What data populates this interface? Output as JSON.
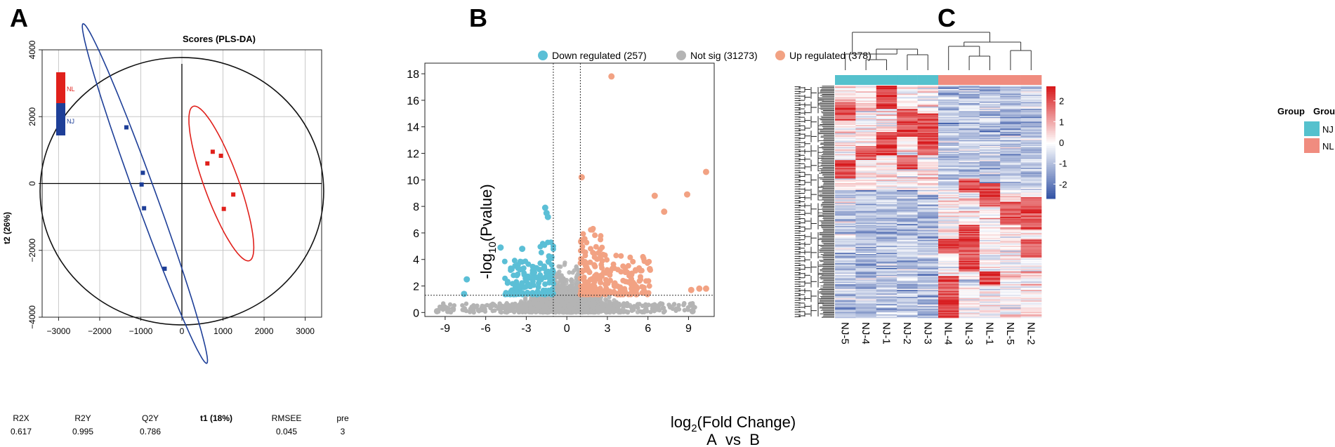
{
  "panel_letters": {
    "a": "A",
    "b": "B",
    "c": "C"
  },
  "chart_data": [
    {
      "id": "pls-da",
      "type": "scatter",
      "title": "Scores (PLS-DA)",
      "xlabel": "t1 (18%)",
      "ylabel": "t2 (26%)",
      "xlim": [
        -3400,
        3400
      ],
      "ylim": [
        -4000,
        4000
      ],
      "xticks": [
        -3000,
        -2000,
        -1000,
        0,
        1000,
        2000,
        3000
      ],
      "yticks": [
        -4000,
        -2000,
        0,
        2000,
        4000
      ],
      "xtick_labels": [
        "−3000",
        "−2000",
        "−1000",
        "0",
        "1000",
        "2000",
        "3000"
      ],
      "ytick_labels": [
        "−4000",
        "−2000",
        "0",
        "2000",
        "4000"
      ],
      "grid": true,
      "legend": [
        {
          "name": "NL",
          "color": "#e0201b"
        },
        {
          "name": "NJ",
          "color": "#1e3f98"
        }
      ],
      "series": [
        {
          "name": "NJ",
          "color": "#1e3f98",
          "points": [
            [
              -1350,
              1680
            ],
            [
              -950,
              320
            ],
            [
              -980,
              -30
            ],
            [
              -920,
              -740
            ],
            [
              -420,
              -2550
            ]
          ]
        },
        {
          "name": "NL",
          "color": "#e0201b",
          "points": [
            [
              750,
              950
            ],
            [
              950,
              830
            ],
            [
              620,
              600
            ],
            [
              1250,
              -330
            ],
            [
              1020,
              -760
            ]
          ]
        }
      ],
      "confidence_ellipse": {
        "center": [
          0,
          -230
        ],
        "radii": [
          3450,
          4000
        ]
      },
      "group_ellipses": [
        {
          "name": "NJ",
          "center": [
            -900,
            -300
          ],
          "semi_major": 4400,
          "semi_minor": 250,
          "angle_deg": 110
        },
        {
          "name": "NL",
          "center": [
            960,
            0
          ],
          "semi_major": 2000,
          "semi_minor": 420,
          "angle_deg": 110
        }
      ],
      "stats": {
        "headers": [
          "R2X",
          "R2Y",
          "Q2Y",
          "RMSEE",
          "pre"
        ],
        "values": [
          "0.617",
          "0.995",
          "0.786",
          "0.045",
          "3"
        ]
      }
    },
    {
      "id": "volcano",
      "type": "scatter",
      "xlabel_base": "log",
      "xlabel_sub": "2",
      "xlabel_rest": "(Fold Change)",
      "ylabel_pre": "-log",
      "ylabel_sub": "10",
      "ylabel_rest": "(Pvalue)",
      "comparison": "A_vs_B",
      "xlim": [
        -10.5,
        10.9
      ],
      "ylim": [
        -0.3,
        18.8
      ],
      "xticks": [
        -9,
        -6,
        -3,
        0,
        3,
        6,
        9
      ],
      "yticks": [
        0,
        2,
        4,
        6,
        8,
        10,
        12,
        14,
        16,
        18
      ],
      "fc_threshold": 1,
      "p_threshold_line": 1.3,
      "legend": [
        {
          "label": "Down regulated (257)",
          "color": "#5bbfd6"
        },
        {
          "label": "Not sig (31273)",
          "color": "#b4b4b4"
        },
        {
          "label": "Up regulated (378)",
          "color": "#f2a283"
        }
      ],
      "counts": {
        "down": 257,
        "not_sig": 31273,
        "up": 378
      },
      "notable_points": [
        [
          3.3,
          17.8
        ],
        [
          10.3,
          10.6
        ],
        [
          1.1,
          10.2
        ],
        [
          8.9,
          8.9
        ],
        [
          6.5,
          8.8
        ],
        [
          7.2,
          7.6
        ],
        [
          -1.6,
          7.9
        ],
        [
          -1.5,
          7.5
        ],
        [
          -1.4,
          7.2
        ],
        [
          -4.9,
          4.9
        ],
        [
          -3.3,
          4.8
        ],
        [
          -7.4,
          2.5
        ],
        [
          -7.6,
          1.4
        ],
        [
          10.3,
          1.8
        ],
        [
          9.8,
          1.8
        ],
        [
          9.2,
          1.7
        ],
        [
          -9.6,
          0.1
        ],
        [
          9.3,
          0.1
        ]
      ]
    },
    {
      "id": "heatmap",
      "type": "heatmap",
      "columns": [
        "NJ-5",
        "NJ-4",
        "NJ-1",
        "NJ-2",
        "NJ-3",
        "NL-4",
        "NL-3",
        "NL-1",
        "NL-5",
        "NL-2"
      ],
      "column_groups": [
        "NJ",
        "NJ",
        "NJ",
        "NJ",
        "NJ",
        "NL",
        "NL",
        "NL",
        "NL",
        "NL"
      ],
      "group_annotation_title": "Group",
      "legend_groups": [
        {
          "name": "NJ",
          "color": "#55c1cd"
        },
        {
          "name": "NL",
          "color": "#f08c7f"
        }
      ],
      "colorbar": {
        "ticks": [
          2,
          1,
          0,
          -1,
          -2
        ],
        "tick_labels": [
          "2",
          "1",
          "0",
          "-1",
          "-2"
        ],
        "range": [
          -2.7,
          2.7
        ],
        "colors": [
          "#2e4fa3",
          "#ffffff",
          "#d7191c"
        ]
      },
      "hot_blocks": [
        {
          "column": "NL-4",
          "rows": "bottom"
        },
        {
          "column": "NL-3",
          "rows": "lower-middle"
        },
        {
          "column": "NL-1",
          "rows": "middle"
        },
        {
          "column": "NL-5",
          "rows": "middle-lower"
        },
        {
          "column": "NL-2",
          "rows": "middle"
        },
        {
          "column": "NJ-1",
          "rows": "top"
        },
        {
          "column": "NJ-2",
          "rows": "upper"
        },
        {
          "column": "NJ-3",
          "rows": "upper"
        },
        {
          "column": "NJ-5",
          "rows": "upper"
        }
      ]
    }
  ]
}
